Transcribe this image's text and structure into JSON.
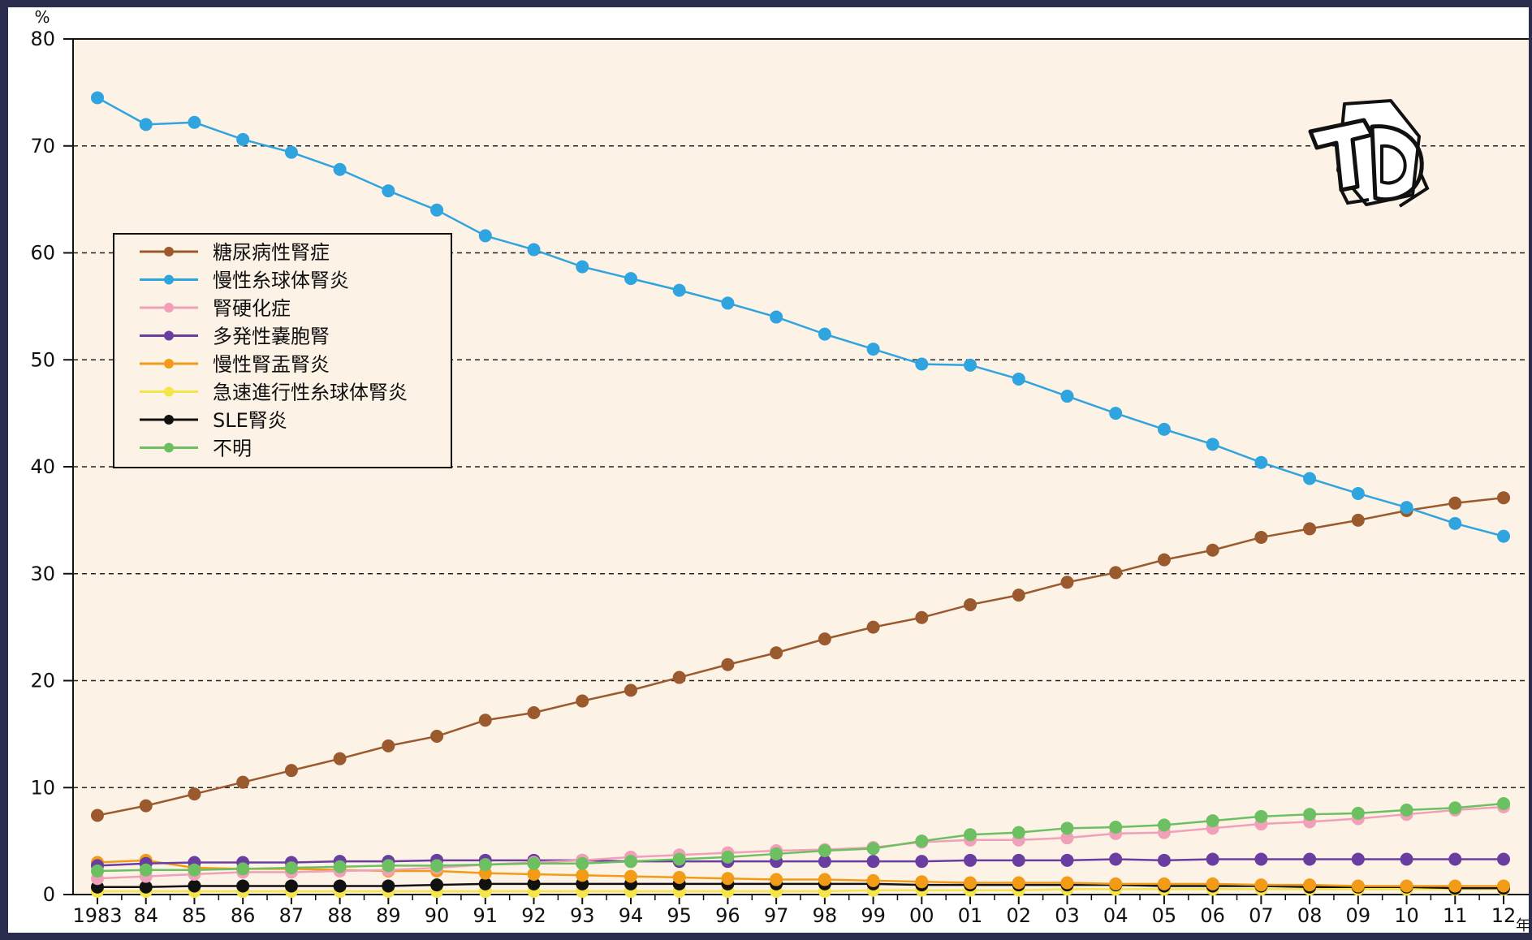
{
  "chart_data": {
    "type": "line",
    "y_unit": "%",
    "x_unit": "年",
    "ylim": [
      0,
      80
    ],
    "yticks": [
      0,
      10,
      20,
      30,
      40,
      50,
      60,
      70,
      80
    ],
    "grid": "horizontal dashed at 10-unit steps",
    "legend_position": "left",
    "categories": [
      "1983",
      "84",
      "85",
      "86",
      "87",
      "88",
      "89",
      "90",
      "91",
      "92",
      "93",
      "94",
      "95",
      "96",
      "97",
      "98",
      "99",
      "00",
      "01",
      "02",
      "03",
      "04",
      "05",
      "06",
      "07",
      "08",
      "09",
      "10",
      "11",
      "12"
    ],
    "series": [
      {
        "name": "糖尿病性腎症",
        "color": "#9a5a2e",
        "values": [
          7.4,
          8.3,
          9.4,
          10.5,
          11.6,
          12.7,
          13.9,
          14.8,
          16.3,
          17.0,
          18.1,
          19.1,
          20.3,
          21.5,
          22.6,
          23.9,
          25.0,
          25.9,
          27.1,
          28.0,
          29.2,
          30.1,
          31.3,
          32.2,
          33.4,
          34.2,
          35.0,
          35.9,
          36.6,
          37.1
        ]
      },
      {
        "name": "慢性糸球体腎炎",
        "color": "#2fa4df",
        "values": [
          74.5,
          72.0,
          72.2,
          70.6,
          69.4,
          67.8,
          65.8,
          64.0,
          61.6,
          60.3,
          58.7,
          57.6,
          56.5,
          55.3,
          54.0,
          52.4,
          51.0,
          49.6,
          49.5,
          48.2,
          46.6,
          45.0,
          43.5,
          42.1,
          40.4,
          38.9,
          37.5,
          36.2,
          34.7,
          33.5
        ]
      },
      {
        "name": "腎硬化症",
        "color": "#f0a0b8",
        "values": [
          1.5,
          1.7,
          1.9,
          2.1,
          2.1,
          2.2,
          2.3,
          2.5,
          2.8,
          3.0,
          3.2,
          3.5,
          3.7,
          3.9,
          4.1,
          4.2,
          4.4,
          4.9,
          5.1,
          5.1,
          5.3,
          5.7,
          5.8,
          6.2,
          6.6,
          6.8,
          7.1,
          7.5,
          7.9,
          8.2
        ]
      },
      {
        "name": "多発性嚢胞腎",
        "color": "#6a3ea1",
        "values": [
          2.7,
          2.9,
          3.0,
          3.0,
          3.0,
          3.1,
          3.1,
          3.2,
          3.2,
          3.2,
          3.2,
          3.1,
          3.1,
          3.1,
          3.1,
          3.1,
          3.1,
          3.1,
          3.2,
          3.2,
          3.2,
          3.3,
          3.2,
          3.3,
          3.3,
          3.3,
          3.3,
          3.3,
          3.3,
          3.3
        ]
      },
      {
        "name": "慢性腎盂腎炎",
        "color": "#f29b17",
        "values": [
          3.0,
          3.2,
          2.5,
          2.4,
          2.4,
          2.3,
          2.2,
          2.2,
          2.0,
          1.9,
          1.8,
          1.7,
          1.6,
          1.5,
          1.4,
          1.4,
          1.3,
          1.2,
          1.1,
          1.1,
          1.1,
          1.0,
          1.0,
          1.0,
          0.9,
          0.9,
          0.8,
          0.8,
          0.8,
          0.8
        ]
      },
      {
        "name": "急速進行性糸球体腎炎",
        "color": "#f5e44a",
        "values": [
          0.3,
          0.3,
          0.3,
          0.3,
          0.3,
          0.3,
          0.3,
          0.3,
          0.3,
          0.3,
          0.3,
          0.3,
          0.3,
          0.3,
          0.3,
          0.3,
          0.4,
          0.4,
          0.4,
          0.4,
          0.5,
          0.5,
          0.5,
          0.5,
          0.5,
          0.5,
          0.5,
          0.5,
          0.5,
          0.5
        ]
      },
      {
        "name": "SLE腎炎",
        "color": "#111111",
        "values": [
          0.7,
          0.7,
          0.8,
          0.8,
          0.8,
          0.8,
          0.8,
          0.9,
          1.0,
          1.0,
          1.0,
          1.0,
          1.0,
          1.0,
          1.0,
          1.0,
          1.0,
          0.9,
          0.9,
          0.9,
          0.9,
          0.9,
          0.8,
          0.8,
          0.8,
          0.7,
          0.7,
          0.7,
          0.6,
          0.6
        ]
      },
      {
        "name": "不明",
        "color": "#6cc062",
        "values": [
          2.2,
          2.3,
          2.3,
          2.4,
          2.5,
          2.6,
          2.7,
          2.7,
          2.8,
          2.9,
          2.9,
          3.1,
          3.3,
          3.5,
          3.8,
          4.1,
          4.3,
          5.0,
          5.6,
          5.8,
          6.2,
          6.3,
          6.5,
          6.9,
          7.3,
          7.5,
          7.6,
          7.9,
          8.1,
          8.5
        ]
      }
    ]
  },
  "colors": {
    "frame": "#2b2d4f",
    "plot_bg": "#fdf2e6",
    "grid": "#222222"
  },
  "logo": {
    "name": "TB-logo"
  }
}
